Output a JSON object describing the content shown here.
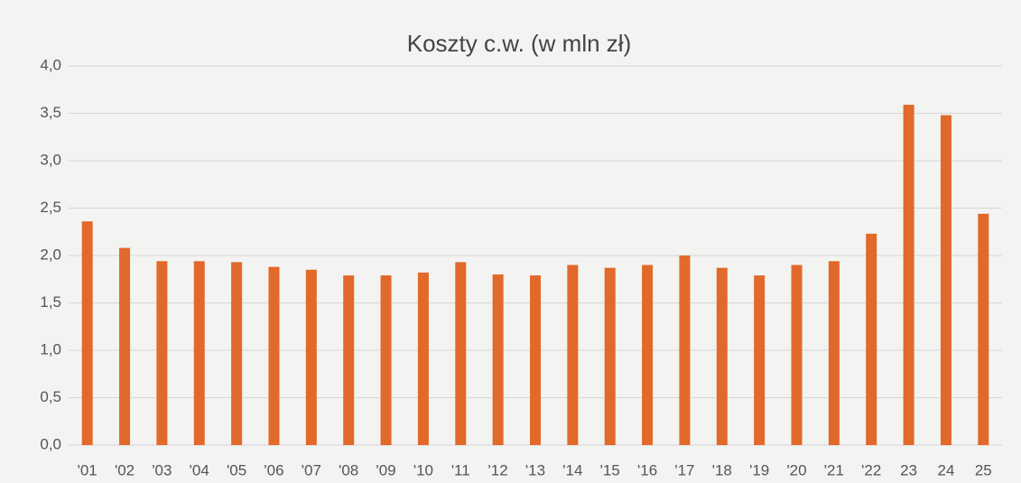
{
  "chart_data": {
    "type": "bar",
    "title": "Koszty c.w. (w mln zł)",
    "categories": [
      "'01",
      "'02",
      "'03",
      "'04",
      "'05",
      "'06",
      "'07",
      "'08",
      "'09",
      "'10",
      "'11",
      "'12",
      "'13",
      "'14",
      "'15",
      "'16",
      "'17",
      "'18",
      "'19",
      "'20",
      "'21",
      "'22",
      "23",
      "24",
      "25"
    ],
    "values": [
      2.36,
      2.08,
      1.94,
      1.94,
      1.93,
      1.88,
      1.85,
      1.79,
      1.79,
      1.82,
      1.93,
      1.8,
      1.79,
      1.9,
      1.87,
      1.9,
      2.0,
      1.87,
      1.79,
      1.9,
      1.94,
      2.23,
      3.59,
      3.48,
      2.44
    ],
    "color": "#e2692a",
    "ylim": [
      0,
      4
    ],
    "yticks": [
      {
        "value": 0,
        "label": "0,0"
      },
      {
        "value": 0.5,
        "label": "0,5"
      },
      {
        "value": 1,
        "label": "1,0"
      },
      {
        "value": 1.5,
        "label": "1,5"
      },
      {
        "value": 2,
        "label": "2,0"
      },
      {
        "value": 2.5,
        "label": "2,5"
      },
      {
        "value": 3,
        "label": "3,0"
      },
      {
        "value": 3.5,
        "label": "3,5"
      },
      {
        "value": 4,
        "label": "4,0"
      }
    ],
    "grid": true
  }
}
